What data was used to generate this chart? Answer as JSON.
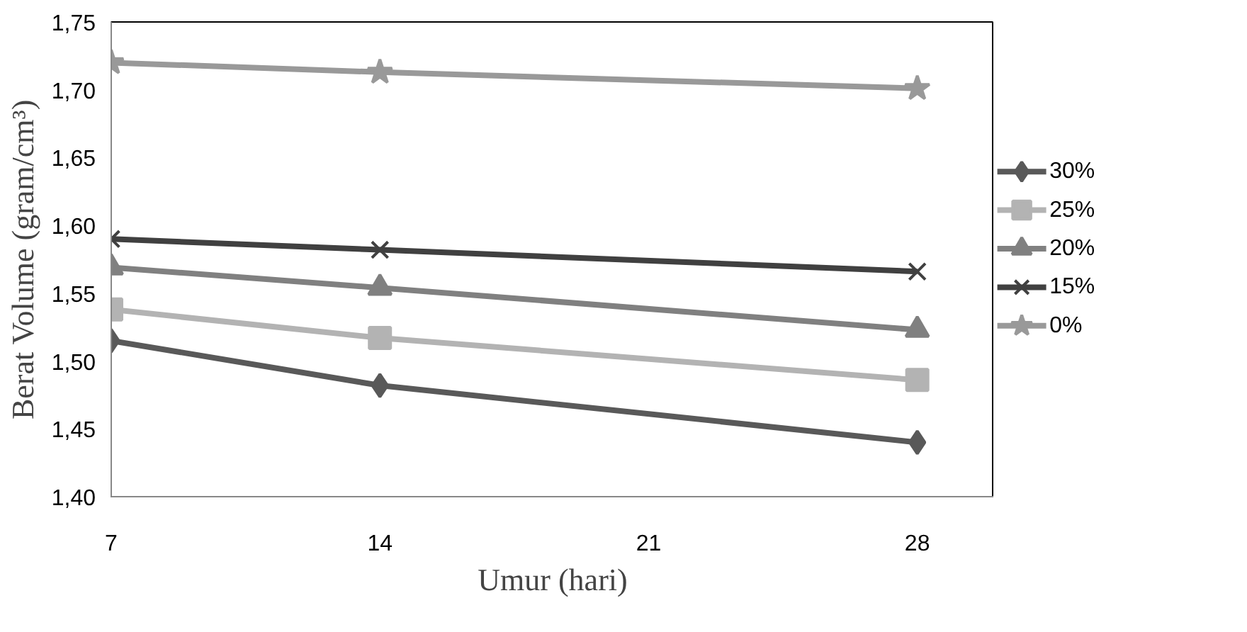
{
  "chart_data": {
    "type": "line",
    "xlabel": "Umur (hari)",
    "ylabel": "Berat Volume (gram/cm³)",
    "x": [
      7,
      14,
      28
    ],
    "xlim": [
      7,
      30
    ],
    "xticks": [
      7,
      14,
      21,
      28
    ],
    "ylim": [
      1.4,
      1.75
    ],
    "yticks": [
      {
        "value": 1.4,
        "label": "1,40"
      },
      {
        "value": 1.45,
        "label": "1,45"
      },
      {
        "value": 1.5,
        "label": "1,50"
      },
      {
        "value": 1.55,
        "label": "1,55"
      },
      {
        "value": 1.6,
        "label": "1,60"
      },
      {
        "value": 1.65,
        "label": "1,65"
      },
      {
        "value": 1.7,
        "label": "1,70"
      },
      {
        "value": 1.75,
        "label": "1,75"
      }
    ],
    "grid": false,
    "legend": "right",
    "line_style": "solid",
    "series": [
      {
        "name": "30%",
        "color": "#595959",
        "marker": "diamond",
        "values": [
          1.515,
          1.482,
          1.44
        ]
      },
      {
        "name": "25%",
        "color": "#b3b3b3",
        "marker": "square",
        "values": [
          1.538,
          1.517,
          1.486
        ]
      },
      {
        "name": "20%",
        "color": "#808080",
        "marker": "triangle",
        "values": [
          1.569,
          1.554,
          1.523
        ]
      },
      {
        "name": "15%",
        "color": "#404040",
        "marker": "cross",
        "values": [
          1.59,
          1.582,
          1.566
        ]
      },
      {
        "name": "0%",
        "color": "#999999",
        "marker": "star",
        "values": [
          1.72,
          1.713,
          1.701
        ]
      }
    ]
  }
}
